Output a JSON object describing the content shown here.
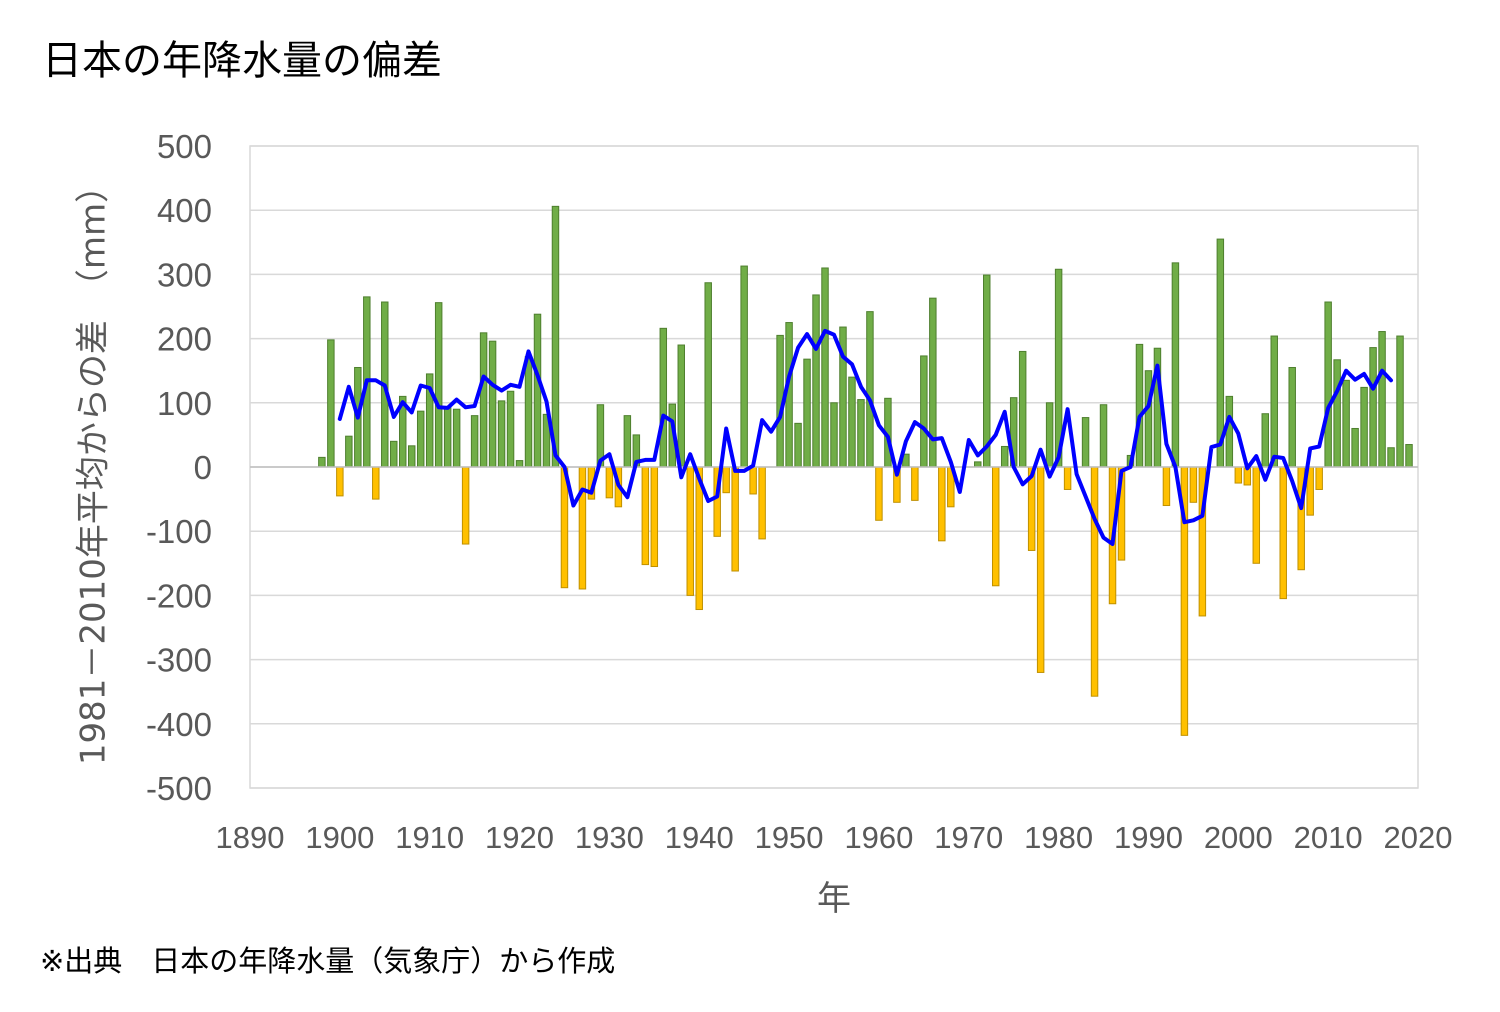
{
  "title": "日本の年降水量の偏差",
  "source_note": "※出典　日本の年降水量（気象庁）から作成",
  "colors": {
    "positive_bar": "#70AD47",
    "positive_bar_border": "#4E7F2E",
    "negative_bar": "#FFC000",
    "negative_bar_border": "#BF9000",
    "line": "#0000FF",
    "grid": "#D9D9D9",
    "tick_text": "#595959"
  },
  "chart_data": {
    "type": "bar",
    "xlabel": "年",
    "ylabel": "1981－2010年平均からの差　（mm）",
    "xlim": [
      1890,
      2020
    ],
    "ylim": [
      -500,
      500
    ],
    "x_ticks": [
      1890,
      1900,
      1910,
      1920,
      1930,
      1940,
      1950,
      1960,
      1970,
      1980,
      1990,
      2000,
      2010,
      2020
    ],
    "y_ticks": [
      500,
      400,
      300,
      200,
      100,
      0,
      -100,
      -200,
      -300,
      -400,
      -500
    ],
    "grid": true,
    "legend": "none",
    "series": [
      {
        "type": "bar",
        "x": [
          1898,
          1899,
          1900,
          1901,
          1902,
          1903,
          1904,
          1905,
          1906,
          1907,
          1908,
          1909,
          1910,
          1911,
          1912,
          1913,
          1914,
          1915,
          1916,
          1917,
          1918,
          1919,
          1920,
          1921,
          1922,
          1923,
          1924,
          1925,
          1926,
          1927,
          1928,
          1929,
          1930,
          1931,
          1932,
          1933,
          1934,
          1935,
          1936,
          1937,
          1938,
          1939,
          1940,
          1941,
          1942,
          1943,
          1944,
          1945,
          1946,
          1947,
          1948,
          1949,
          1950,
          1951,
          1952,
          1953,
          1954,
          1955,
          1956,
          1957,
          1958,
          1959,
          1960,
          1961,
          1962,
          1963,
          1964,
          1965,
          1966,
          1967,
          1968,
          1969,
          1970,
          1971,
          1972,
          1973,
          1974,
          1975,
          1976,
          1977,
          1978,
          1979,
          1980,
          1981,
          1982,
          1983,
          1984,
          1985,
          1986,
          1987,
          1988,
          1989,
          1990,
          1991,
          1992,
          1993,
          1994,
          1995,
          1996,
          1997,
          1998,
          1999,
          2000,
          2001,
          2002,
          2003,
          2004,
          2005,
          2006,
          2007,
          2008,
          2009,
          2010,
          2011,
          2012,
          2013,
          2014,
          2015,
          2016,
          2017,
          2018,
          2019
        ],
        "values": [
          15,
          198,
          -45,
          48,
          155,
          265,
          -50,
          257,
          40,
          110,
          33,
          87,
          145,
          256,
          93,
          90,
          -120,
          80,
          209,
          196,
          103,
          118,
          10,
          172,
          238,
          82,
          406,
          -188,
          0,
          -190,
          -50,
          97,
          -48,
          -62,
          80,
          50,
          -152,
          -155,
          216,
          98,
          190,
          -200,
          -222,
          287,
          -108,
          -40,
          -162,
          313,
          -42,
          -112,
          0,
          205,
          225,
          68,
          168,
          268,
          310,
          100,
          218,
          140,
          105,
          242,
          -83,
          107,
          -55,
          20,
          -52,
          173,
          263,
          -115,
          -62,
          0,
          0,
          8,
          299,
          -185,
          32,
          108,
          180,
          -130,
          -320,
          100,
          308,
          -35,
          0,
          77,
          -357,
          97,
          -213,
          -145,
          18,
          191,
          150,
          185,
          -60,
          318,
          -418,
          -55,
          -232,
          0,
          355,
          110,
          -25,
          -28,
          -150,
          83,
          204,
          -205,
          155,
          -160,
          -75,
          -35,
          257,
          167,
          135,
          60,
          124,
          186,
          211,
          30,
          204,
          35
        ]
      },
      {
        "type": "line",
        "name": "",
        "x": [
          1900,
          1901,
          1902,
          1903,
          1904,
          1905,
          1906,
          1907,
          1908,
          1909,
          1910,
          1911,
          1912,
          1913,
          1914,
          1915,
          1916,
          1917,
          1918,
          1919,
          1920,
          1921,
          1922,
          1923,
          1924,
          1925,
          1926,
          1927,
          1928,
          1929,
          1930,
          1931,
          1932,
          1933,
          1934,
          1935,
          1936,
          1937,
          1938,
          1939,
          1940,
          1941,
          1942,
          1943,
          1944,
          1945,
          1946,
          1947,
          1948,
          1949,
          1950,
          1951,
          1952,
          1953,
          1954,
          1955,
          1956,
          1957,
          1958,
          1959,
          1960,
          1961,
          1962,
          1963,
          1964,
          1965,
          1966,
          1967,
          1968,
          1969,
          1970,
          1971,
          1972,
          1973,
          1974,
          1975,
          1976,
          1977,
          1978,
          1979,
          1980,
          1981,
          1982,
          1983,
          1984,
          1985,
          1986,
          1987,
          1988,
          1989,
          1990,
          1991,
          1992,
          1993,
          1994,
          1995,
          1996,
          1997,
          1998,
          1999,
          2000,
          2001,
          2002,
          2003,
          2004,
          2005,
          2006,
          2007,
          2008,
          2009,
          2010,
          2011,
          2012,
          2013,
          2014,
          2015,
          2016,
          2017
        ],
        "values": [
          75,
          125,
          77,
          135,
          135,
          127,
          78,
          101,
          85,
          127,
          123,
          93,
          92,
          105,
          93,
          95,
          141,
          128,
          119,
          128,
          125,
          180,
          143,
          102,
          18,
          0,
          -60,
          -35,
          -40,
          10,
          20,
          -28,
          -47,
          8,
          11,
          11,
          80,
          71,
          -16,
          20,
          -18,
          -53,
          -46,
          60,
          -6,
          -6,
          2,
          73,
          55,
          78,
          141,
          186,
          207,
          184,
          212,
          206,
          172,
          160,
          125,
          104,
          65,
          47,
          -12,
          40,
          70,
          60,
          43,
          45,
          8,
          -39,
          42,
          18,
          32,
          50,
          86,
          0,
          -27,
          -14,
          27,
          -15,
          15,
          90,
          -11,
          -46,
          -81,
          -110,
          -120,
          -6,
          0,
          78,
          95,
          158,
          36,
          0,
          -86,
          -83,
          -76,
          31,
          35,
          78,
          52,
          -2,
          17,
          -20,
          16,
          14,
          -22,
          -64,
          29,
          32,
          92,
          118,
          150,
          136,
          145,
          122,
          150,
          135
        ]
      }
    ]
  }
}
